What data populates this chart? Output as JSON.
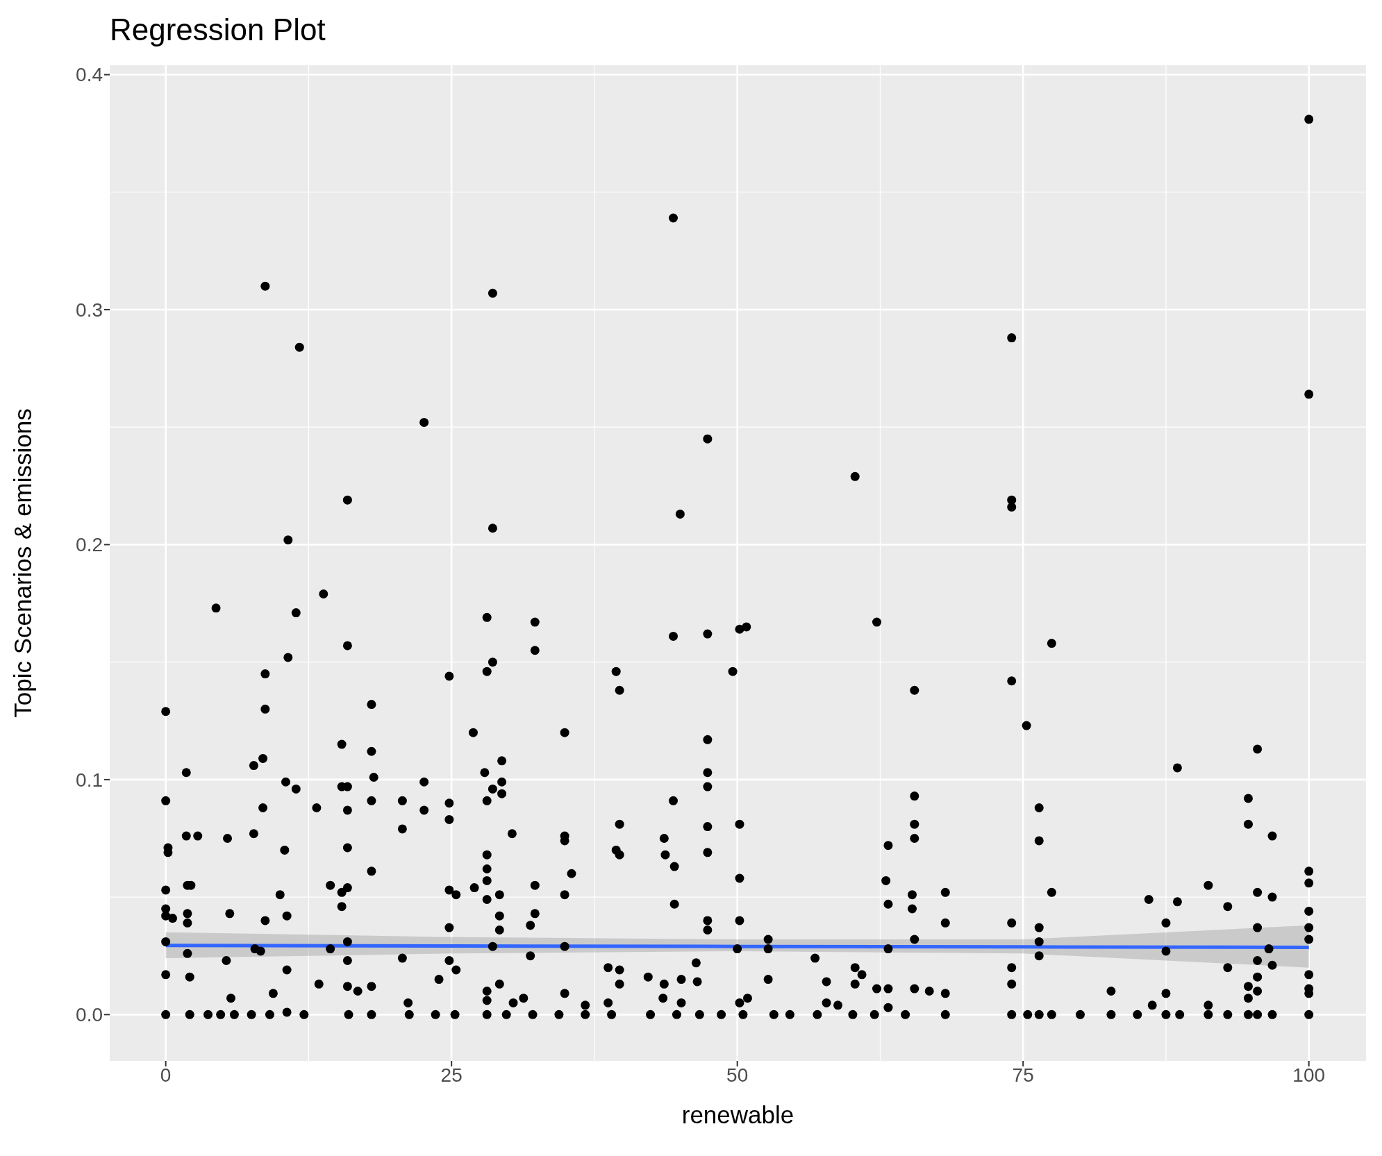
{
  "chart_data": {
    "type": "scatter",
    "title": "Regression Plot",
    "xlabel": "renewable",
    "ylabel": "Topic Scenarios & emissions",
    "xlim": [
      -4.9,
      105
    ],
    "ylim": [
      -0.0197,
      0.404
    ],
    "xticks": [
      0,
      25,
      50,
      75,
      100
    ],
    "yticks": [
      {
        "value": 0,
        "label": "0.0"
      },
      {
        "value": 0.1,
        "label": "0.1"
      },
      {
        "value": 0.2,
        "label": "0.2"
      },
      {
        "value": 0.3,
        "label": "0.3"
      },
      {
        "value": 0.4,
        "label": "0.4"
      }
    ],
    "grid": true,
    "series": [
      {
        "color": "#000000",
        "marker": "circle",
        "x": [
          0,
          0,
          0.2,
          0.2,
          0,
          0,
          0,
          0,
          0,
          0,
          0.6,
          1.8,
          1.8,
          1.9,
          2.2,
          1.9,
          1.9,
          1.9,
          2.1,
          2.8,
          2.1,
          4.4,
          5.4,
          5.6,
          5.3,
          5.7,
          3.7,
          4.8,
          6,
          8.7,
          11.7,
          10.7,
          11.4,
          10.7,
          8.7,
          8.7,
          7.7,
          8.5,
          8.5,
          7.7,
          10.5,
          11.4,
          10.4,
          10,
          8.7,
          10.6,
          7.8,
          8.3,
          9.4,
          10.6,
          10.6,
          7.5,
          9.1,
          12.1,
          13.8,
          13.2,
          13.4,
          14.4,
          15.4,
          15.4,
          14.4,
          15.9,
          15.9,
          15.4,
          15.4,
          15.9,
          15.9,
          15.9,
          15.9,
          15.9,
          15.9,
          15.9,
          16.8,
          16,
          18,
          18,
          18.2,
          18,
          18,
          18,
          18,
          22.6,
          20.7,
          20.7,
          22.6,
          22.6,
          20.7,
          21.2,
          21.3,
          23.6,
          24.8,
          24.8,
          24.8,
          24.8,
          25.4,
          24.8,
          24.8,
          25.4,
          23.9,
          25.3,
          28.6,
          28.6,
          28.1,
          28.6,
          28.1,
          26.9,
          27.9,
          29.4,
          29.4,
          28.1,
          28.6,
          29.4,
          30.3,
          28.1,
          28.1,
          28.1,
          28.1,
          27,
          29.2,
          29.2,
          29.2,
          28.6,
          29.2,
          28.1,
          28.1,
          30.4,
          31.3,
          28.1,
          29.8,
          32.3,
          32.3,
          32.3,
          32.3,
          31.9,
          31.9,
          32.1,
          34.9,
          34.9,
          34.9,
          35.5,
          34.9,
          34.9,
          34.9,
          34.4,
          36.7,
          36.7,
          39.4,
          39.7,
          39.7,
          39.4,
          39.7,
          38.7,
          39.7,
          39.7,
          38.7,
          39,
          44.4,
          45,
          44.4,
          44.4,
          43.6,
          43.7,
          44.5,
          44.5,
          42.2,
          43.6,
          43.5,
          45.1,
          46.4,
          46.5,
          45.1,
          42.4,
          44.7,
          47.4,
          47.4,
          47.4,
          47.4,
          47.4,
          47.4,
          47.4,
          47.4,
          47.4,
          46.7,
          48.6,
          49.6,
          50.2,
          50.8,
          50.2,
          50.2,
          50.2,
          50,
          50.2,
          50.9,
          50.5,
          52.7,
          52.7,
          52.7,
          53.2,
          54.6,
          56.8,
          57.8,
          57.8,
          58.8,
          57,
          60.3,
          60.3,
          60.9,
          60.3,
          60.1,
          62.2,
          62.2,
          63.2,
          63,
          63.2,
          63.2,
          63.2,
          63.2,
          62,
          65.5,
          65.5,
          65.5,
          65.5,
          65.3,
          65.3,
          65.5,
          65.5,
          64.7,
          66.8,
          68.2,
          68.2,
          68.2,
          68.2,
          74,
          74,
          74,
          74,
          74,
          74,
          74,
          74,
          75.3,
          77.5,
          76.4,
          76.4,
          77.5,
          76.4,
          76.4,
          76.4,
          75.4,
          76.4,
          77.5,
          80,
          82.7,
          82.7,
          86,
          86.3,
          85,
          87.5,
          87.5,
          87.5,
          87.5,
          88.5,
          88.5,
          88.7,
          91.2,
          91.2,
          91.2,
          92.9,
          92.9,
          92.9,
          94.7,
          94.7,
          94.7,
          94.7,
          94.7,
          95.5,
          95.5,
          95.5,
          95.5,
          95.5,
          95.5,
          95.5,
          96.8,
          96.8,
          96.5,
          96.8,
          96.8,
          100,
          100,
          100,
          100,
          100,
          100,
          100,
          100,
          100,
          100,
          100
        ],
        "values": [
          0.129,
          0.091,
          0.071,
          0.069,
          0.053,
          0.045,
          0.042,
          0.031,
          0.017,
          0,
          0.041,
          0.103,
          0.076,
          0.055,
          0.055,
          0.043,
          0.039,
          0.026,
          0.016,
          0.076,
          0,
          0.173,
          0.075,
          0.043,
          0.023,
          0.007,
          0,
          0,
          0,
          0.31,
          0.284,
          0.202,
          0.171,
          0.152,
          0.145,
          0.13,
          0.106,
          0.109,
          0.088,
          0.077,
          0.099,
          0.096,
          0.07,
          0.051,
          0.04,
          0.042,
          0.028,
          0.027,
          0.009,
          0.019,
          0.001,
          0,
          0,
          0,
          0.179,
          0.088,
          0.013,
          0.055,
          0.052,
          0.046,
          0.028,
          0.219,
          0.157,
          0.115,
          0.097,
          0.097,
          0.087,
          0.071,
          0.054,
          0.031,
          0.023,
          0.012,
          0.01,
          0,
          0.132,
          0.112,
          0.101,
          0.091,
          0.061,
          0.012,
          0,
          0.252,
          0.091,
          0.079,
          0.099,
          0.087,
          0.024,
          0.005,
          0,
          0,
          0.144,
          0.09,
          0.083,
          0.053,
          0.051,
          0.037,
          0.023,
          0.019,
          0.015,
          0,
          0.307,
          0.207,
          0.169,
          0.15,
          0.146,
          0.12,
          0.103,
          0.108,
          0.099,
          0.091,
          0.096,
          0.094,
          0.077,
          0.068,
          0.062,
          0.057,
          0.049,
          0.054,
          0.051,
          0.042,
          0.036,
          0.029,
          0.013,
          0.01,
          0.006,
          0.005,
          0.007,
          0,
          0,
          0.167,
          0.155,
          0.055,
          0.043,
          0.038,
          0.025,
          0,
          0.12,
          0.076,
          0.074,
          0.06,
          0.051,
          0.029,
          0.009,
          0,
          0,
          0.004,
          0.146,
          0.138,
          0.081,
          0.07,
          0.068,
          0.02,
          0.019,
          0.013,
          0.005,
          0,
          0.339,
          0.213,
          0.161,
          0.091,
          0.075,
          0.068,
          0.063,
          0.047,
          0.016,
          0.013,
          0.007,
          0.015,
          0.022,
          0.014,
          0.005,
          0,
          0,
          0.245,
          0.162,
          0.117,
          0.103,
          0.097,
          0.08,
          0.069,
          0.04,
          0.036,
          0,
          0,
          0.146,
          0.164,
          0.165,
          0.081,
          0.058,
          0.04,
          0.028,
          0.005,
          0.007,
          0,
          0.032,
          0.015,
          0.028,
          0,
          0,
          0.024,
          0.014,
          0.005,
          0.004,
          0,
          0.229,
          0.02,
          0.017,
          0.013,
          0,
          0.167,
          0.011,
          0.072,
          0.057,
          0.047,
          0.028,
          0.011,
          0.003,
          0,
          0.138,
          0.093,
          0.081,
          0.075,
          0.051,
          0.045,
          0.032,
          0.011,
          0,
          0.01,
          0.052,
          0.039,
          0.009,
          0,
          0.288,
          0.219,
          0.216,
          0.142,
          0.039,
          0.02,
          0.013,
          0,
          0.123,
          0.158,
          0.088,
          0.074,
          0.052,
          0.037,
          0.031,
          0.025,
          0,
          0,
          0,
          0,
          0.01,
          0,
          0.049,
          0.004,
          0,
          0.039,
          0.027,
          0.009,
          0,
          0.105,
          0.048,
          0,
          0.055,
          0.004,
          0,
          0.046,
          0.02,
          0,
          0.092,
          0.081,
          0.012,
          0.007,
          0,
          0.113,
          0.052,
          0.037,
          0.023,
          0.016,
          0.01,
          0,
          0.076,
          0.05,
          0.028,
          0.021,
          0,
          0.381,
          0.264,
          0.061,
          0.056,
          0.044,
          0.037,
          0.032,
          0.017,
          0.011,
          0.009,
          0
        ]
      },
      {
        "type": "line",
        "color": "#3366ff",
        "x": [
          0,
          25,
          50,
          75,
          100
        ],
        "values": [
          0.0294,
          0.0292,
          0.029,
          0.0288,
          0.0286
        ],
        "lower": [
          0.024,
          0.026,
          0.027,
          0.026,
          0.02
        ],
        "upper": [
          0.035,
          0.033,
          0.032,
          0.032,
          0.038
        ]
      }
    ]
  }
}
